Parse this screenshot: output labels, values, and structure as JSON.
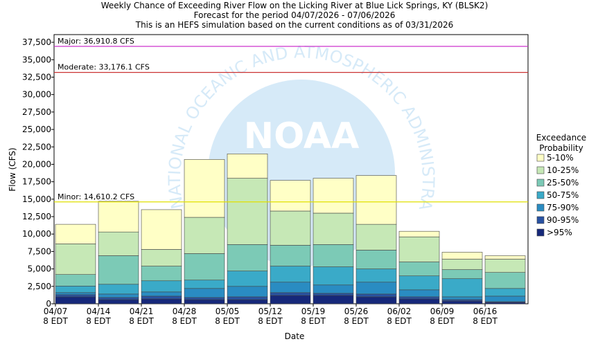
{
  "chart_data": {
    "type": "stacked_bar",
    "title": "Weekly Chance of Exceeding River Flow on the Licking River at Blue Lick Springs, KY (BLSK2)",
    "subtitle": [
      "Forecast for the period 04/07/2026 - 07/06/2026",
      "This is an HEFS simulation based on the current conditions as of 03/31/2026"
    ],
    "x_label": "Date",
    "y_label": "Flow (CFS)",
    "categories": [
      "04/07",
      "04/14",
      "04/21",
      "04/28",
      "05/05",
      "05/12",
      "05/19",
      "05/26",
      "06/02",
      "06/09",
      "06/16"
    ],
    "x_tick_sublabel": "8 EDT",
    "ylim": [
      0,
      38600
    ],
    "yticks": [
      0,
      {
        "value": 2500,
        "label": "2,500"
      },
      {
        "value": 5000,
        "label": "5,000"
      },
      {
        "value": 7500,
        "label": "7,500"
      },
      {
        "value": 10000,
        "label": "10,000"
      },
      {
        "value": 12500,
        "label": "12,500"
      },
      {
        "value": 15000,
        "label": "15,000"
      },
      {
        "value": 17500,
        "label": "17,500"
      },
      {
        "value": 20000,
        "label": "20,000"
      },
      {
        "value": 22500,
        "label": "22,500"
      },
      {
        "value": 25000,
        "label": "25,000"
      },
      {
        "value": 27500,
        "label": "27,500"
      },
      {
        "value": 30000,
        "label": "30,000"
      },
      {
        "value": 32500,
        "label": "32,500"
      },
      {
        "value": 35000,
        "label": "35,000"
      },
      {
        "value": 37500,
        "label": "37,500"
      }
    ],
    "grid": false,
    "legend_title": [
      "Exceedance",
      "Probability"
    ],
    "series": [
      {
        "name": ">95%",
        "color": "#16287a",
        "values": [
          1000,
          600,
          700,
          600,
          600,
          1200,
          1200,
          1000,
          700,
          400,
          200
        ]
      },
      {
        "name": "90-95%",
        "color": "#2852a2",
        "values": [
          300,
          300,
          400,
          300,
          400,
          400,
          300,
          400,
          300,
          200,
          100
        ]
      },
      {
        "name": "75-90%",
        "color": "#2a8cc2",
        "values": [
          300,
          500,
          600,
          1300,
          1500,
          1500,
          1200,
          1700,
          1000,
          400,
          800
        ]
      },
      {
        "name": "50-75%",
        "color": "#3aaac8",
        "values": [
          950,
          1400,
          1600,
          1200,
          2200,
          2300,
          2600,
          1900,
          2000,
          2600,
          1100
        ]
      },
      {
        "name": "25-50%",
        "color": "#7ccab6",
        "values": [
          1650,
          4100,
          2100,
          3800,
          3800,
          3000,
          3200,
          2700,
          2000,
          1300,
          2300
        ]
      },
      {
        "name": "10-25%",
        "color": "#c6e8b6",
        "values": [
          4400,
          3400,
          2400,
          5200,
          9500,
          4900,
          4500,
          3700,
          3600,
          1500,
          1900
        ]
      },
      {
        "name": "5-10%",
        "color": "#ffffc6",
        "values": [
          2800,
          4400,
          5700,
          8300,
          3500,
          4400,
          5000,
          7000,
          800,
          1000,
          500
        ]
      }
    ],
    "thresholds": [
      {
        "label": "Major: 36,910.8 CFS",
        "value": 36910.8,
        "color": "#cc33cc"
      },
      {
        "label": "Moderate: 33,176.1 CFS",
        "value": 33176.1,
        "color": "#cc3333"
      },
      {
        "label": "Minor: 14,610.2 CFS",
        "value": 14610.2,
        "color": "#e0e000"
      }
    ],
    "watermark": {
      "text": "NOAA",
      "ring": "NATIONAL OCEANIC AND ATMOSPHERIC ADMINISTRATION"
    }
  }
}
